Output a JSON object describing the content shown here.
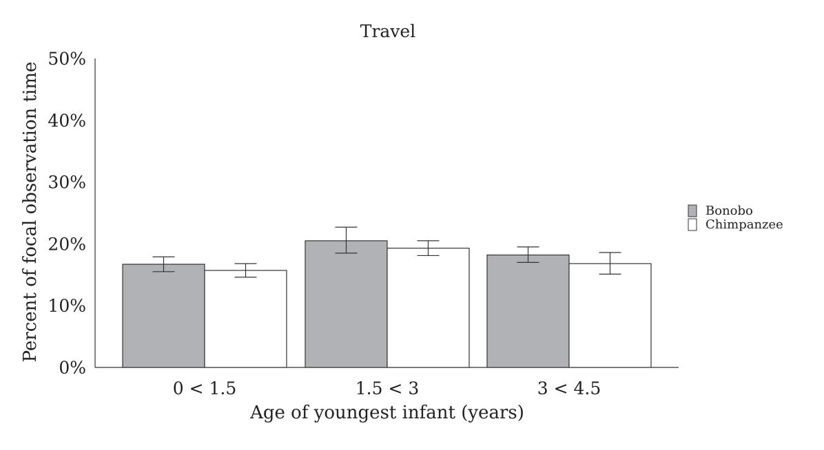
{
  "chart_data": {
    "type": "bar",
    "title": "Travel",
    "xlabel": "Age of youngest infant (years)",
    "ylabel": "Percent of focal observation time",
    "categories": [
      "0 < 1.5",
      "1.5 < 3",
      "3 < 4.5"
    ],
    "ylim": [
      0,
      50
    ],
    "yticks": [
      {
        "value": 0,
        "label": "0%"
      },
      {
        "value": 10,
        "label": "10%"
      },
      {
        "value": 20,
        "label": "20%"
      },
      {
        "value": 30,
        "label": "30%"
      },
      {
        "value": 40,
        "label": "40%"
      },
      {
        "value": 50,
        "label": "50%"
      }
    ],
    "series": [
      {
        "name": "Bonobo",
        "color": "#b1b2b5",
        "values": [
          16.7,
          20.5,
          18.2
        ],
        "error_low": [
          15.5,
          18.5,
          17.0
        ],
        "error_high": [
          17.9,
          22.7,
          19.5
        ]
      },
      {
        "name": "Chimpanzee",
        "color": "#ffffff",
        "values": [
          15.7,
          19.3,
          16.8
        ],
        "error_low": [
          14.6,
          18.1,
          15.1
        ],
        "error_high": [
          16.8,
          20.5,
          18.6
        ]
      }
    ],
    "grid": false,
    "legend_position": "right"
  }
}
